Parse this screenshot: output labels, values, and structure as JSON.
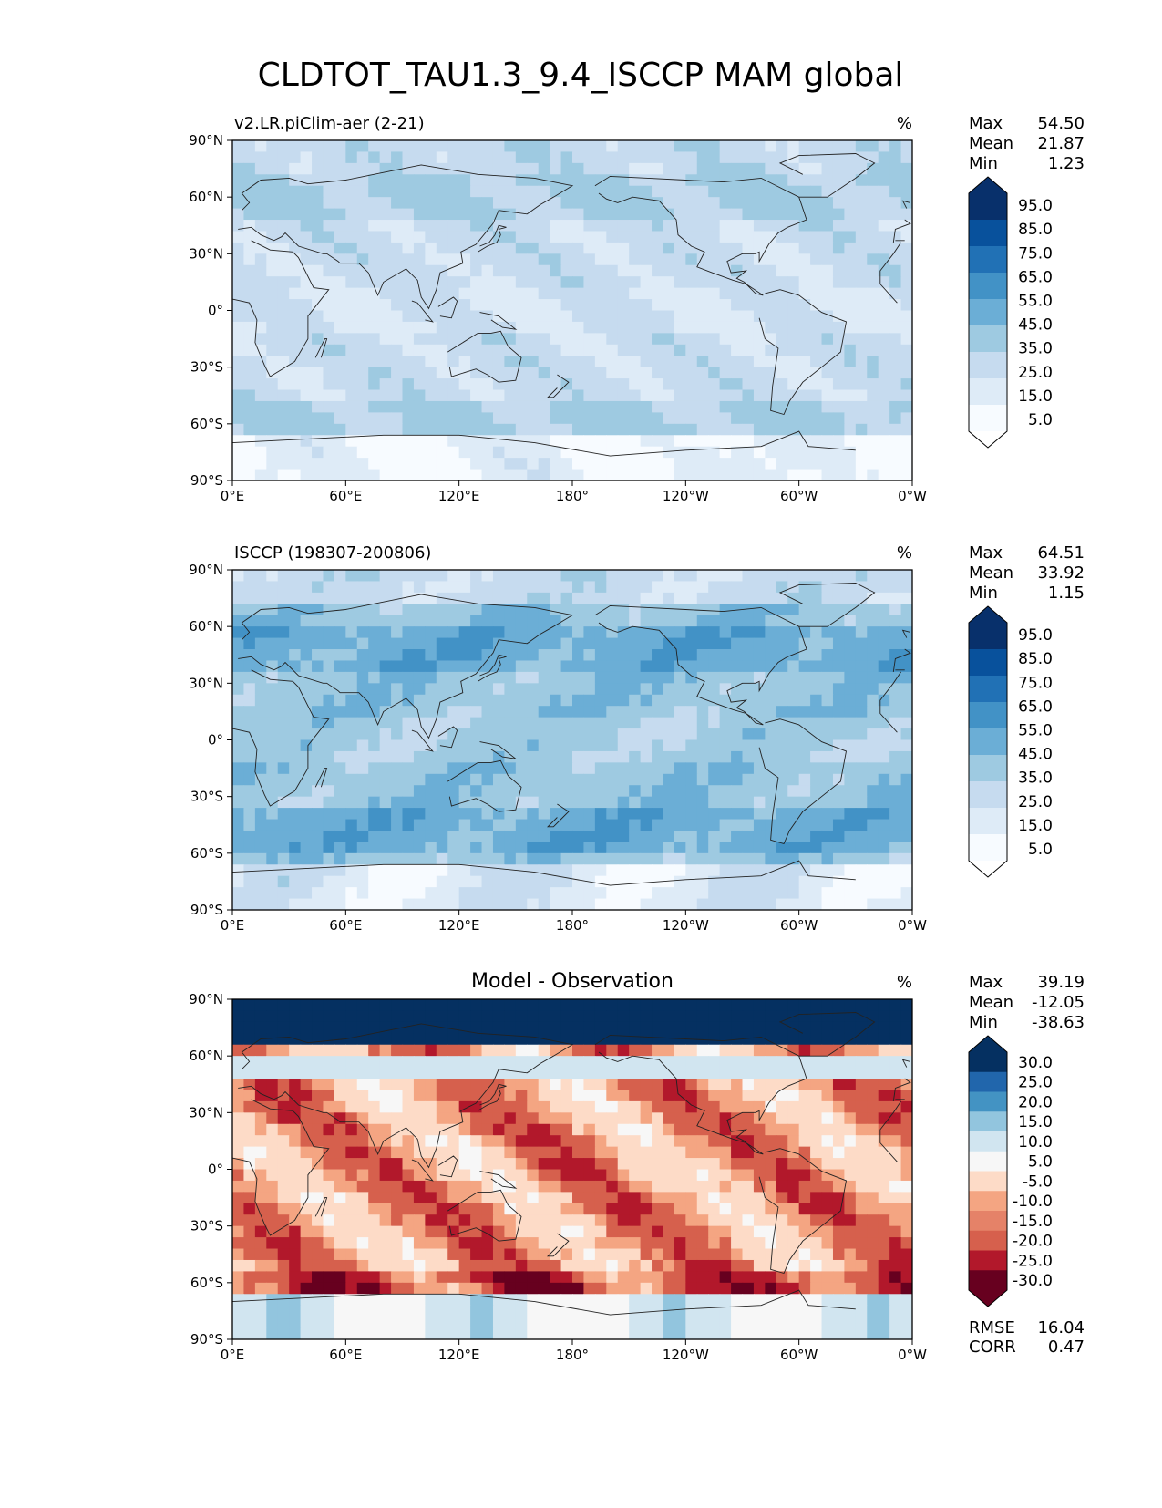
{
  "title": "CLDTOT_TAU1.3_9.4_ISCCP MAM global",
  "colors": {
    "cloud_scale": [
      "#f7fbff",
      "#deebf7",
      "#c6dbef",
      "#9ecae1",
      "#6baed6",
      "#4292c6",
      "#2171b5",
      "#08519c",
      "#08306b",
      "#0b2a5a"
    ],
    "diff_scale": [
      "#67001f",
      "#b2182b",
      "#d6604d",
      "#f4a582",
      "#fddbc7",
      "#f7f7f7",
      "#d1e5f0",
      "#92c5de",
      "#4393c3",
      "#2166ac",
      "#053061"
    ],
    "coastline": "#222222"
  },
  "chart_data": [
    {
      "type": "heatmap",
      "name": "model",
      "title": "v2.LR.piClim-aer (2-21)",
      "units": "%",
      "stats": [
        {
          "label": "Max",
          "value": "54.50"
        },
        {
          "label": "Mean",
          "value": "21.87"
        },
        {
          "label": "Min",
          "value": "1.23"
        }
      ],
      "colorbar_ticks": [
        "95.0",
        "85.0",
        "75.0",
        "65.0",
        "55.0",
        "45.0",
        "35.0",
        "25.0",
        "15.0",
        "5.0"
      ],
      "lat_ticks": [
        "90°N",
        "60°N",
        "30°N",
        "0°",
        "30°S",
        "60°S",
        "90°S"
      ],
      "lon_ticks": [
        "0°E",
        "60°E",
        "120°E",
        "180°",
        "120°W",
        "60°W",
        "0°W"
      ]
    },
    {
      "type": "heatmap",
      "name": "obs",
      "title": "ISCCP (198307-200806)",
      "units": "%",
      "stats": [
        {
          "label": "Max",
          "value": "64.51"
        },
        {
          "label": "Mean",
          "value": "33.92"
        },
        {
          "label": "Min",
          "value": "1.15"
        }
      ],
      "colorbar_ticks": [
        "95.0",
        "85.0",
        "75.0",
        "65.0",
        "55.0",
        "45.0",
        "35.0",
        "25.0",
        "15.0",
        "5.0"
      ],
      "lat_ticks": [
        "90°N",
        "60°N",
        "30°N",
        "0°",
        "30°S",
        "60°S",
        "90°S"
      ],
      "lon_ticks": [
        "0°E",
        "60°E",
        "120°E",
        "180°",
        "120°W",
        "60°W",
        "0°W"
      ]
    },
    {
      "type": "heatmap",
      "name": "diff",
      "title": "Model - Observation",
      "units": "%",
      "stats": [
        {
          "label": "Max",
          "value": "39.19"
        },
        {
          "label": "Mean",
          "value": "-12.05"
        },
        {
          "label": "Min",
          "value": "-38.63"
        }
      ],
      "colorbar_ticks": [
        "30.0",
        "25.0",
        "20.0",
        "15.0",
        "10.0",
        "5.0",
        "-5.0",
        "-10.0",
        "-15.0",
        "-20.0",
        "-25.0",
        "-30.0"
      ],
      "lat_ticks": [
        "90°N",
        "60°N",
        "30°N",
        "0°",
        "30°S",
        "60°S",
        "90°S"
      ],
      "lon_ticks": [
        "0°E",
        "60°E",
        "120°E",
        "180°",
        "120°W",
        "60°W",
        "0°W"
      ],
      "extra_stats": [
        {
          "label": "RMSE",
          "value": "16.04"
        },
        {
          "label": "CORR",
          "value": "0.47"
        }
      ]
    }
  ]
}
